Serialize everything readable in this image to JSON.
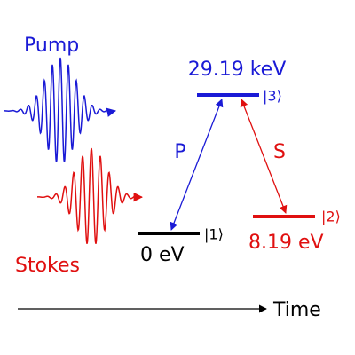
{
  "pump": {
    "label": "Pump"
  },
  "stokes": {
    "label": "Stokes"
  },
  "states": [
    {
      "ket": "|1⟩",
      "energy": "0 eV"
    },
    {
      "ket": "|2⟩",
      "energy": "8.19 eV"
    },
    {
      "ket": "|3⟩",
      "energy": "29.19 keV"
    }
  ],
  "transitions": {
    "pump": "P",
    "stokes": "S"
  },
  "axis": {
    "label": "Time"
  }
}
